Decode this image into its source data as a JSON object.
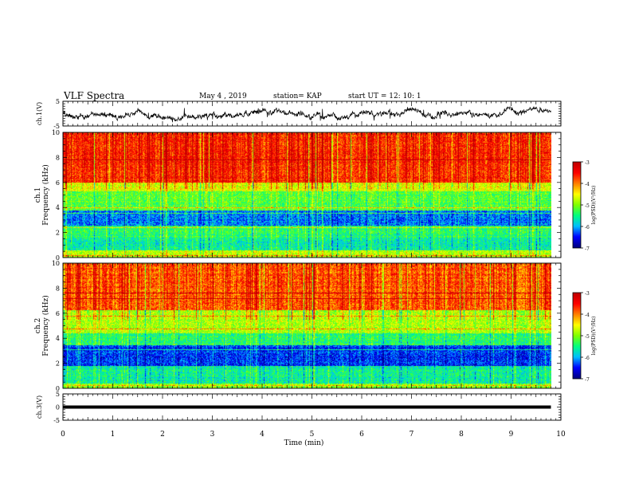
{
  "header": {
    "title": "VLF Spectra",
    "date": "May 4 , 2019",
    "station": "station= KAP",
    "start_ut": "start UT = 12: 10: 1"
  },
  "chart_data": [
    {
      "type": "line",
      "panel": "ch1-waveform",
      "ylabel": "ch.1(V)",
      "ylim": [
        -5,
        5
      ],
      "yticks": [
        "5",
        "-5"
      ],
      "xlim": [
        0,
        10
      ],
      "description_values": "noisy waveform fluctuating roughly between -3 and +3 V"
    },
    {
      "type": "heatmap",
      "panel": "ch1-spectrogram",
      "ylabel": "ch.1 Frequency (kHz)",
      "ylim": [
        0,
        10
      ],
      "yticks": [
        "0",
        "2",
        "4",
        "6",
        "8",
        "10"
      ],
      "xlim": [
        0,
        10
      ],
      "data_extent_min": 9.8,
      "colorbar": {
        "label": "log(PSD)(V²/Hz)",
        "ticks": [
          "-3",
          "-4",
          "-5",
          "-6",
          "-7"
        ],
        "range": [
          -7,
          -3
        ]
      },
      "bands_khz": [
        {
          "from": 6.0,
          "to": 10.0,
          "level": -3.6
        },
        {
          "from": 5.3,
          "to": 6.0,
          "level": -4.6
        },
        {
          "from": 3.8,
          "to": 5.3,
          "level": -5.2
        },
        {
          "from": 2.6,
          "to": 3.8,
          "level": -6.2
        },
        {
          "from": 1.6,
          "to": 2.6,
          "level": -5.4
        },
        {
          "from": 0.6,
          "to": 1.6,
          "level": -5.6
        },
        {
          "from": 0.0,
          "to": 0.6,
          "level": -4.8
        }
      ]
    },
    {
      "type": "heatmap",
      "panel": "ch2-spectrogram",
      "ylabel": "ch.2 Frequency (kHz)",
      "ylim": [
        0,
        10
      ],
      "yticks": [
        "0",
        "2",
        "4",
        "6",
        "8",
        "10"
      ],
      "xlim": [
        0,
        10
      ],
      "data_extent_min": 9.8,
      "colorbar": {
        "label": "log(PSD)(V²/Hz)",
        "ticks": [
          "-3",
          "-4",
          "-5",
          "-6",
          "-7"
        ],
        "range": [
          -7,
          -3
        ]
      },
      "bands_khz": [
        {
          "from": 6.3,
          "to": 10.0,
          "level": -3.8
        },
        {
          "from": 4.4,
          "to": 6.3,
          "level": -4.8
        },
        {
          "from": 3.5,
          "to": 4.4,
          "level": -5.4
        },
        {
          "from": 1.8,
          "to": 3.5,
          "level": -6.4
        },
        {
          "from": 0.4,
          "to": 1.8,
          "level": -5.6
        },
        {
          "from": 0.0,
          "to": 0.4,
          "level": -5.0
        }
      ]
    },
    {
      "type": "line",
      "panel": "ch3-waveform",
      "ylabel": "ch.3(V)",
      "ylim": [
        -5,
        5
      ],
      "yticks": [
        "5",
        "0",
        "-5"
      ],
      "xlim": [
        0,
        10
      ],
      "xlabel": "Time (min)",
      "xticks": [
        "0",
        "1",
        "2",
        "3",
        "4",
        "5",
        "6",
        "7",
        "8",
        "9",
        "10"
      ],
      "constant_value": 0
    }
  ],
  "colors": {
    "colormap": [
      "#00007f",
      "#0000ff",
      "#00bfff",
      "#00ff80",
      "#80ff00",
      "#ffff00",
      "#ff8000",
      "#ff0000",
      "#c00000"
    ]
  }
}
